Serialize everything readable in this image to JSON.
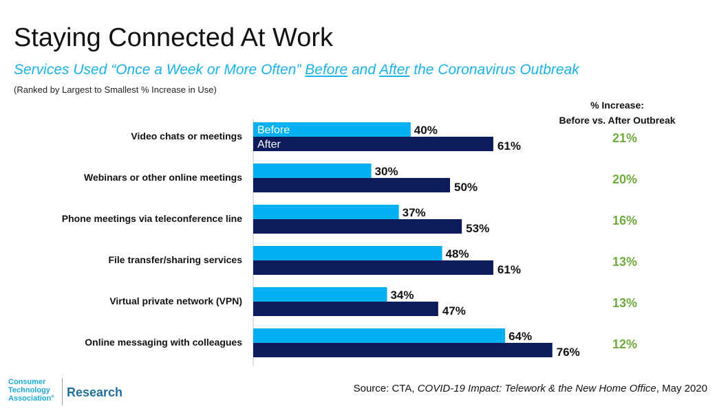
{
  "header": {
    "title": "Staying Connected At Work",
    "subtitle_pre": "Services Used “Once a Week or More Often” ",
    "subtitle_before": "Before",
    "subtitle_mid": " and ",
    "subtitle_after": "After",
    "subtitle_post": " the Coronavirus Outbreak",
    "note": "(Ranked by Largest to Smallest % Increase in Use)"
  },
  "increase_header": {
    "line1": "% Increase:",
    "line2": "Before vs. After Outbreak"
  },
  "source": {
    "prefix": "Source: CTA, ",
    "title": "COVID-19 Impact: Telework & the New Home Office",
    "suffix": ", May 2020"
  },
  "logo": {
    "line1": "Consumer",
    "line2": "Technology",
    "line3": "Association°",
    "research": "Research"
  },
  "colors": {
    "before": "#00b0f0",
    "after": "#0d1a5b",
    "increase": "#6faa3f",
    "subtitle": "#1ab2e8"
  },
  "chart_data": {
    "type": "bar",
    "orientation": "horizontal",
    "categories": [
      "Video chats or meetings",
      "Webinars or other online meetings",
      "Phone meetings via teleconference line",
      "File transfer/sharing services",
      "Virtual private network (VPN)",
      "Online messaging with colleagues"
    ],
    "series": [
      {
        "name": "Before",
        "values": [
          40,
          30,
          37,
          48,
          34,
          64
        ]
      },
      {
        "name": "After",
        "values": [
          61,
          50,
          53,
          61,
          47,
          76
        ]
      }
    ],
    "value_labels": {
      "Before": [
        "40%",
        "30%",
        "37%",
        "48%",
        "34%",
        "64%"
      ],
      "After": [
        "61%",
        "50%",
        "53%",
        "61%",
        "47%",
        "76%"
      ]
    },
    "increase_labels": [
      "21%",
      "20%",
      "16%",
      "13%",
      "13%",
      "12%"
    ],
    "xlim": [
      0,
      100
    ],
    "grid": false,
    "legend": "inside first bar pair"
  }
}
